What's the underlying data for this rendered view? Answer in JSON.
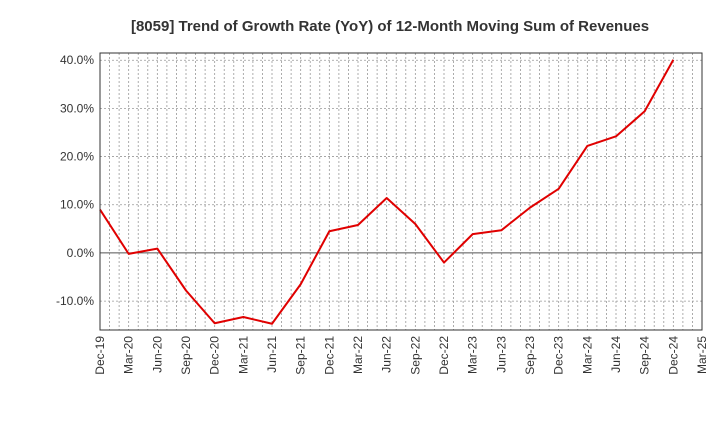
{
  "chart_data": {
    "type": "line",
    "title": "[8059]  Trend of Growth Rate (YoY) of 12-Month Moving Sum of Revenues",
    "xlabel": "",
    "ylabel": "",
    "x_tick_labels": [
      "Dec-19",
      "Mar-20",
      "Jun-20",
      "Sep-20",
      "Dec-20",
      "Mar-21",
      "Jun-21",
      "Sep-21",
      "Dec-21",
      "Mar-22",
      "Jun-22",
      "Sep-22",
      "Dec-22",
      "Mar-23",
      "Jun-23",
      "Sep-23",
      "Dec-23",
      "Mar-24",
      "Jun-24",
      "Sep-24",
      "Dec-24",
      "Mar-25"
    ],
    "y_tick_values": [
      -10,
      0,
      10,
      20,
      30,
      40
    ],
    "y_tick_labels": [
      "-10.0%",
      "0.0%",
      "10.0%",
      "20.0%",
      "30.0%",
      "40.0%"
    ],
    "ylim": [
      -16,
      41.5
    ],
    "grid": true,
    "line_color": "#e00000",
    "series": [
      {
        "x": [
          "Dec-19",
          "Mar-20",
          "Jun-20",
          "Sep-20",
          "Dec-20",
          "Mar-21",
          "Jun-21",
          "Sep-21",
          "Dec-21",
          "Mar-22",
          "Jun-22",
          "Sep-22",
          "Dec-22",
          "Mar-23",
          "Jun-23",
          "Sep-23",
          "Dec-23",
          "Mar-24",
          "Jun-24",
          "Sep-24",
          "Dec-24"
        ],
        "values": [
          9.0,
          -0.2,
          0.9,
          -7.8,
          -14.6,
          -13.3,
          -14.7,
          -6.5,
          4.5,
          5.8,
          11.4,
          6.0,
          -2.0,
          3.9,
          4.7,
          9.4,
          13.3,
          22.2,
          24.2,
          29.4,
          40.1
        ]
      }
    ]
  }
}
